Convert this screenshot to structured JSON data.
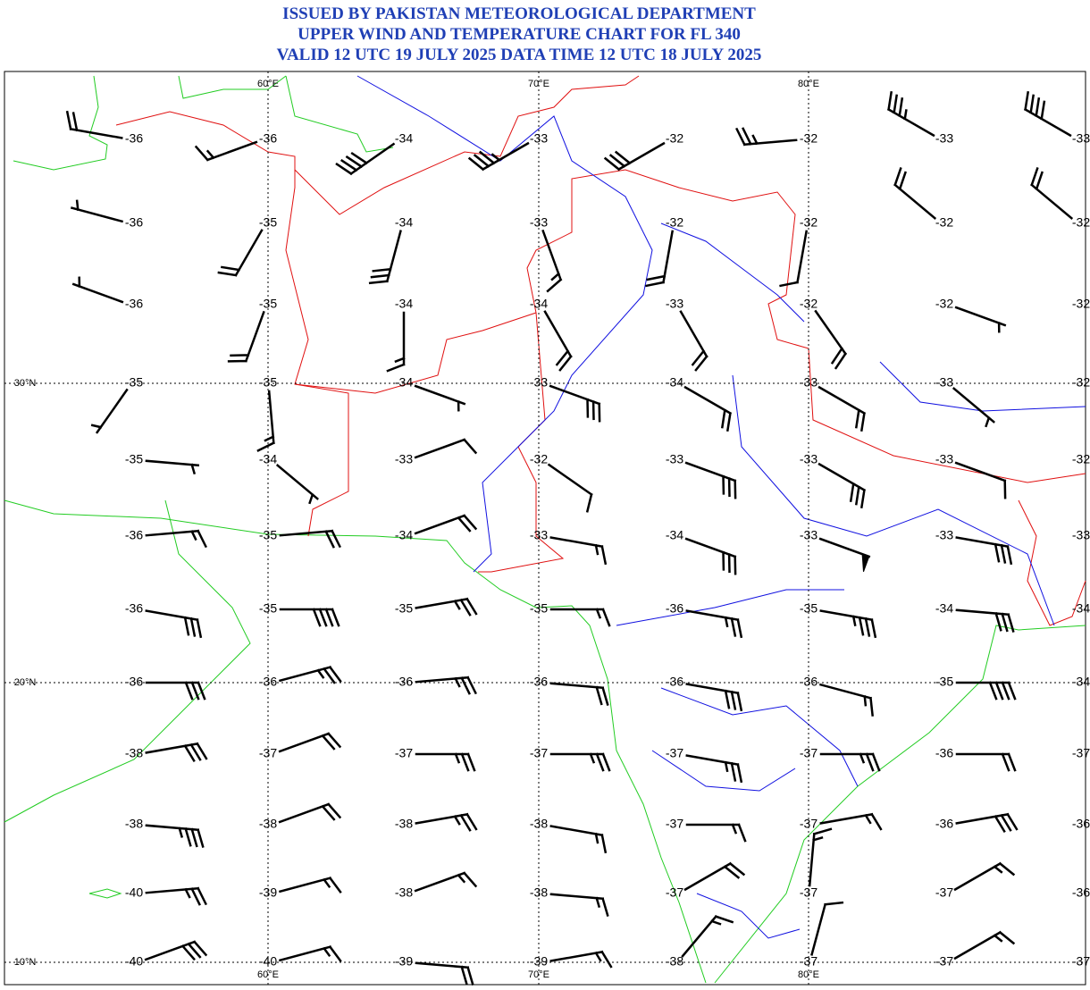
{
  "header": {
    "lines": [
      "ISSUED BY PAKISTAN METEOROLOGICAL DEPARTMENT",
      "UPPER WIND AND TEMPERATURE CHART FOR FL 340",
      "VALID 12 UTC 19 JULY 2025 DATA TIME 12 UTC 18 JULY 2025"
    ]
  },
  "lon_labels": [
    "60°E",
    "70°E",
    "80°E"
  ],
  "lat_labels": [
    "30°N",
    "20°N",
    "10°N"
  ],
  "rows": [
    {
      "temps": [
        -36,
        -36,
        -34,
        -33,
        -32,
        -32,
        -33,
        -33
      ],
      "wind": [
        [
          280,
          20
        ],
        [
          250,
          15
        ],
        [
          235,
          40
        ],
        [
          240,
          35
        ],
        [
          240,
          30
        ],
        [
          265,
          25
        ],
        [
          300,
          35
        ],
        [
          300,
          40
        ]
      ]
    },
    {
      "temps": [
        -36,
        -35,
        -34,
        -33,
        -32,
        -32,
        -32,
        -32
      ],
      "wind": [
        [
          285,
          5
        ],
        [
          210,
          20
        ],
        [
          195,
          30
        ],
        [
          160,
          15
        ],
        [
          190,
          20
        ],
        [
          190,
          10
        ],
        [
          310,
          20
        ],
        [
          310,
          20
        ]
      ]
    },
    {
      "temps": [
        -36,
        -35,
        -34,
        -34,
        -33,
        -32,
        -32,
        -32
      ],
      "wind": [
        [
          290,
          5
        ],
        [
          200,
          20
        ],
        [
          180,
          15
        ],
        [
          150,
          20
        ],
        [
          150,
          20
        ],
        [
          145,
          20
        ],
        [
          110,
          5
        ],
        [
          110,
          5
        ]
      ]
    },
    {
      "temps": [
        -35,
        -35,
        -34,
        -33,
        -34,
        -33,
        -33,
        -32
      ],
      "wind": [
        [
          215,
          5
        ],
        [
          175,
          15
        ],
        [
          110,
          5
        ],
        [
          110,
          30
        ],
        [
          120,
          20
        ],
        [
          120,
          20
        ],
        [
          130,
          5
        ],
        [
          120,
          10
        ]
      ]
    },
    {
      "temps": [
        -35,
        -34,
        -33,
        -32,
        -33,
        -33,
        -33,
        -32
      ],
      "wind": [
        [
          95,
          5
        ],
        [
          130,
          5
        ],
        [
          70,
          10
        ],
        [
          125,
          10
        ],
        [
          110,
          30
        ],
        [
          120,
          30
        ],
        [
          110,
          10
        ],
        [
          110,
          10
        ]
      ]
    },
    {
      "temps": [
        -36,
        -35,
        -34,
        -33,
        -34,
        -33,
        -33,
        -33
      ],
      "wind": [
        [
          85,
          15
        ],
        [
          85,
          20
        ],
        [
          70,
          20
        ],
        [
          100,
          15
        ],
        [
          110,
          30
        ],
        [
          110,
          50
        ],
        [
          100,
          30
        ],
        [
          100,
          30
        ]
      ]
    },
    {
      "temps": [
        -36,
        -35,
        -35,
        -35,
        -36,
        -35,
        -34,
        -34
      ],
      "wind": [
        [
          100,
          30
        ],
        [
          90,
          40
        ],
        [
          80,
          25
        ],
        [
          90,
          15
        ],
        [
          100,
          25
        ],
        [
          100,
          35
        ],
        [
          95,
          30
        ],
        [
          95,
          30
        ]
      ]
    },
    {
      "temps": [
        -36,
        -36,
        -36,
        -36,
        -36,
        -36,
        -35,
        -34
      ],
      "wind": [
        [
          90,
          30
        ],
        [
          75,
          25
        ],
        [
          85,
          25
        ],
        [
          95,
          20
        ],
        [
          100,
          30
        ],
        [
          105,
          15
        ],
        [
          90,
          40
        ],
        [
          90,
          30
        ]
      ]
    },
    {
      "temps": [
        -38,
        -37,
        -37,
        -37,
        -37,
        -37,
        -36,
        -37
      ],
      "wind": [
        [
          80,
          30
        ],
        [
          70,
          20
        ],
        [
          90,
          25
        ],
        [
          90,
          25
        ],
        [
          100,
          25
        ],
        [
          90,
          25
        ],
        [
          90,
          20
        ],
        [
          90,
          20
        ]
      ]
    },
    {
      "temps": [
        -38,
        -38,
        -38,
        -38,
        -37,
        -37,
        -36,
        -36
      ],
      "wind": [
        [
          95,
          35
        ],
        [
          70,
          20
        ],
        [
          80,
          25
        ],
        [
          100,
          15
        ],
        [
          90,
          15
        ],
        [
          80,
          15
        ],
        [
          80,
          30
        ],
        [
          80,
          30
        ]
      ]
    },
    {
      "temps": [
        -40,
        -39,
        -38,
        -38,
        -37,
        -37,
        -37,
        -36
      ],
      "wind": [
        [
          85,
          25
        ],
        [
          75,
          15
        ],
        [
          70,
          15
        ],
        [
          95,
          15
        ],
        [
          60,
          20
        ],
        [
          5,
          15
        ],
        [
          60,
          15
        ],
        [
          60,
          15
        ]
      ]
    },
    {
      "temps": [
        -40,
        -40,
        -39,
        -39,
        -38,
        -37,
        -37,
        -37
      ],
      "wind": [
        [
          70,
          30
        ],
        [
          75,
          15
        ],
        [
          95,
          20
        ],
        [
          80,
          15
        ],
        [
          40,
          15
        ],
        [
          15,
          10
        ],
        [
          60,
          15
        ],
        [
          60,
          15
        ]
      ]
    }
  ]
}
